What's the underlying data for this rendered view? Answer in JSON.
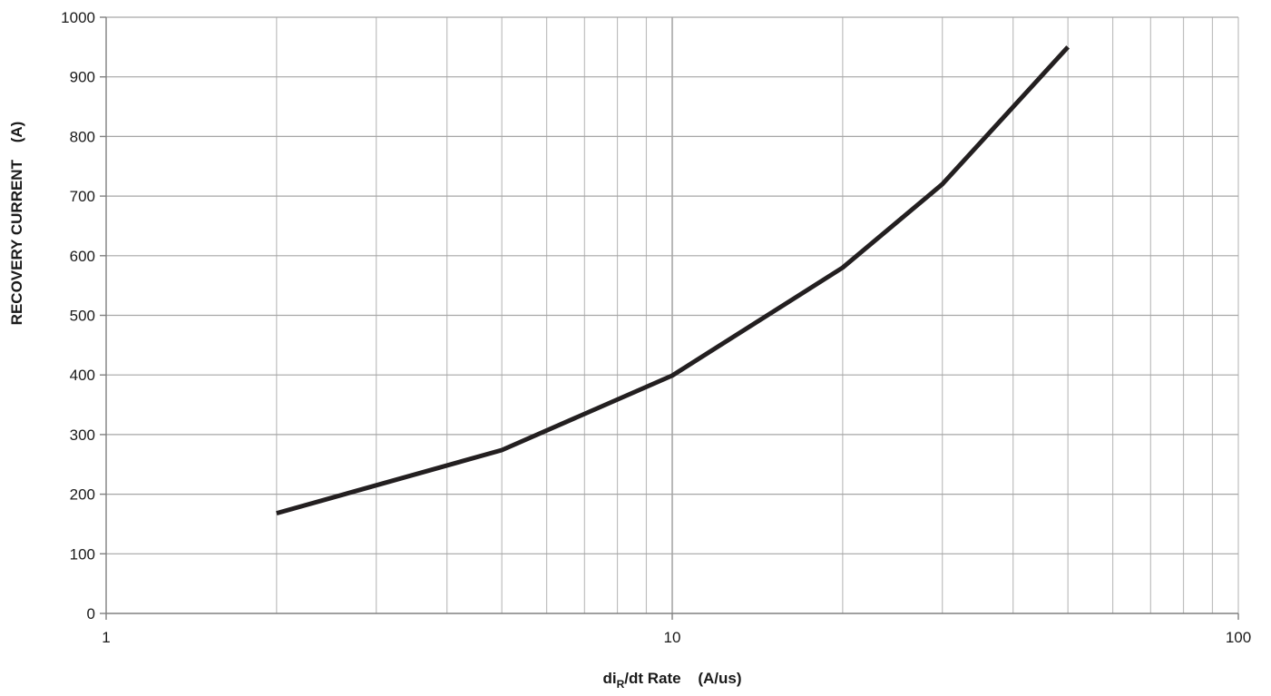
{
  "chart_data": {
    "type": "line",
    "title": "",
    "x_scale": "log",
    "xlim": [
      1,
      100
    ],
    "ylim": [
      0,
      1000
    ],
    "xlabel": {
      "main": "di",
      "sub": "R",
      "rest": "/dt Rate",
      "unit": "(A/us)"
    },
    "ylabel": {
      "main": "RECOVERY CURRENT",
      "unit": "(A)"
    },
    "x_ticks": [
      {
        "value": 1,
        "label": "1"
      },
      {
        "value": 10,
        "label": "10"
      },
      {
        "value": 100,
        "label": "100"
      }
    ],
    "y_ticks": [
      {
        "value": 0,
        "label": "0"
      },
      {
        "value": 100,
        "label": "100"
      },
      {
        "value": 200,
        "label": "200"
      },
      {
        "value": 300,
        "label": "300"
      },
      {
        "value": 400,
        "label": "400"
      },
      {
        "value": 500,
        "label": "500"
      },
      {
        "value": 600,
        "label": "600"
      },
      {
        "value": 700,
        "label": "700"
      },
      {
        "value": 800,
        "label": "800"
      },
      {
        "value": 900,
        "label": "900"
      },
      {
        "value": 1000,
        "label": "1000"
      }
    ],
    "grid": true,
    "line_color": "#231f20",
    "grid_color": "#bfbfbf",
    "series": [
      {
        "x": [
          2,
          5,
          10,
          20,
          30,
          50
        ],
        "y": [
          168,
          274,
          399,
          580,
          720,
          950
        ]
      }
    ]
  }
}
